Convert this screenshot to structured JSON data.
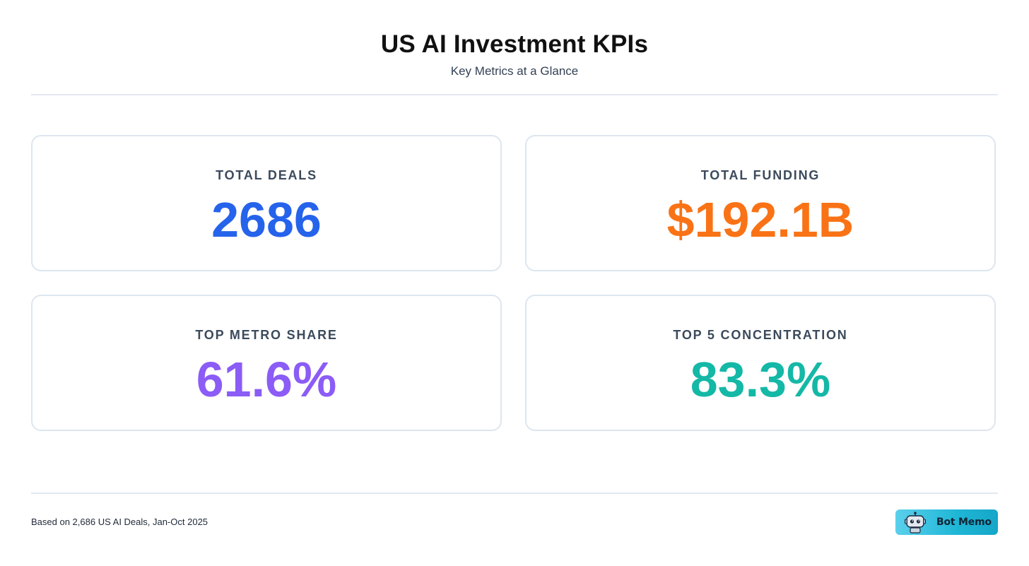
{
  "header": {
    "title": "US AI Investment KPIs",
    "subtitle": "Key Metrics at a Glance"
  },
  "kpis": [
    {
      "label": "TOTAL DEALS",
      "value": "2686",
      "color": "#2563eb"
    },
    {
      "label": "TOTAL FUNDING",
      "value": "$192.1B",
      "color": "#f97316"
    },
    {
      "label": "TOP METRO SHARE",
      "value": "61.6%",
      "color": "#8b5cf6"
    },
    {
      "label": "TOP 5 CONCENTRATION",
      "value": "83.3%",
      "color": "#14b8a6"
    }
  ],
  "footer": {
    "note": "Based on 2,686 US AI Deals, Jan-Oct 2025",
    "brand": "Bot Memo",
    "brand_icon": "robot-icon"
  }
}
